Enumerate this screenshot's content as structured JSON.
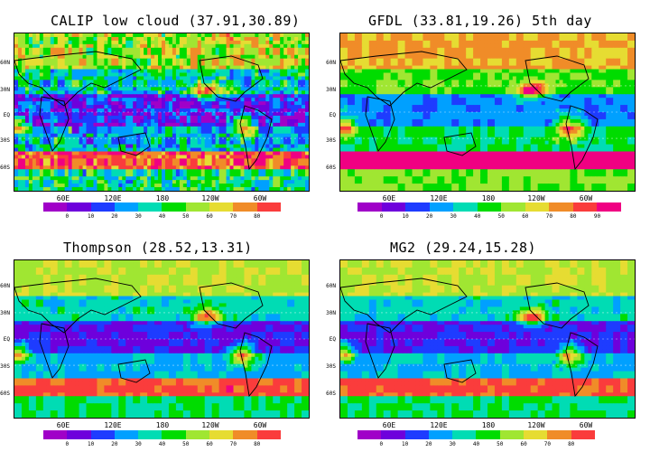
{
  "panels": [
    {
      "id": "calip",
      "title": "CALIP low cloud (37.91,30.89)"
    },
    {
      "id": "gfdl",
      "title": "GFDL (33.81,19.26) 5th day"
    },
    {
      "id": "thompson",
      "title": "Thompson (28.52,13.31)"
    },
    {
      "id": "mg2",
      "title": "MG2 (29.24,15.28)"
    }
  ],
  "lat_labels": [
    "60N",
    "30N",
    "EQ",
    "30S",
    "60S"
  ],
  "lon_labels": [
    "60E",
    "120E",
    "180",
    "120W",
    "60W"
  ],
  "colorbar": {
    "labels": [
      "0",
      "10",
      "20",
      "30",
      "40",
      "50",
      "60",
      "70",
      "80",
      "90"
    ],
    "colors": [
      "#a000c8",
      "#6e00dc",
      "#1e3cff",
      "#00a0ff",
      "#00dcb4",
      "#00dc00",
      "#a0e632",
      "#e6dc32",
      "#f08c28",
      "#fa3c3c",
      "#f00082"
    ]
  },
  "legend_labels_per_panel": {
    "calip": [
      "0",
      "10",
      "20",
      "30",
      "40",
      "50",
      "60",
      "70",
      "80"
    ],
    "gfdl": [
      "0",
      "10",
      "20",
      "30",
      "40",
      "50",
      "60",
      "70",
      "80",
      "90"
    ],
    "thompson": [
      "0",
      "10",
      "20",
      "30",
      "40",
      "50",
      "60",
      "70",
      "80"
    ],
    "mg2": [
      "0",
      "10",
      "20",
      "30",
      "40",
      "50",
      "60",
      "70",
      "80"
    ]
  }
}
